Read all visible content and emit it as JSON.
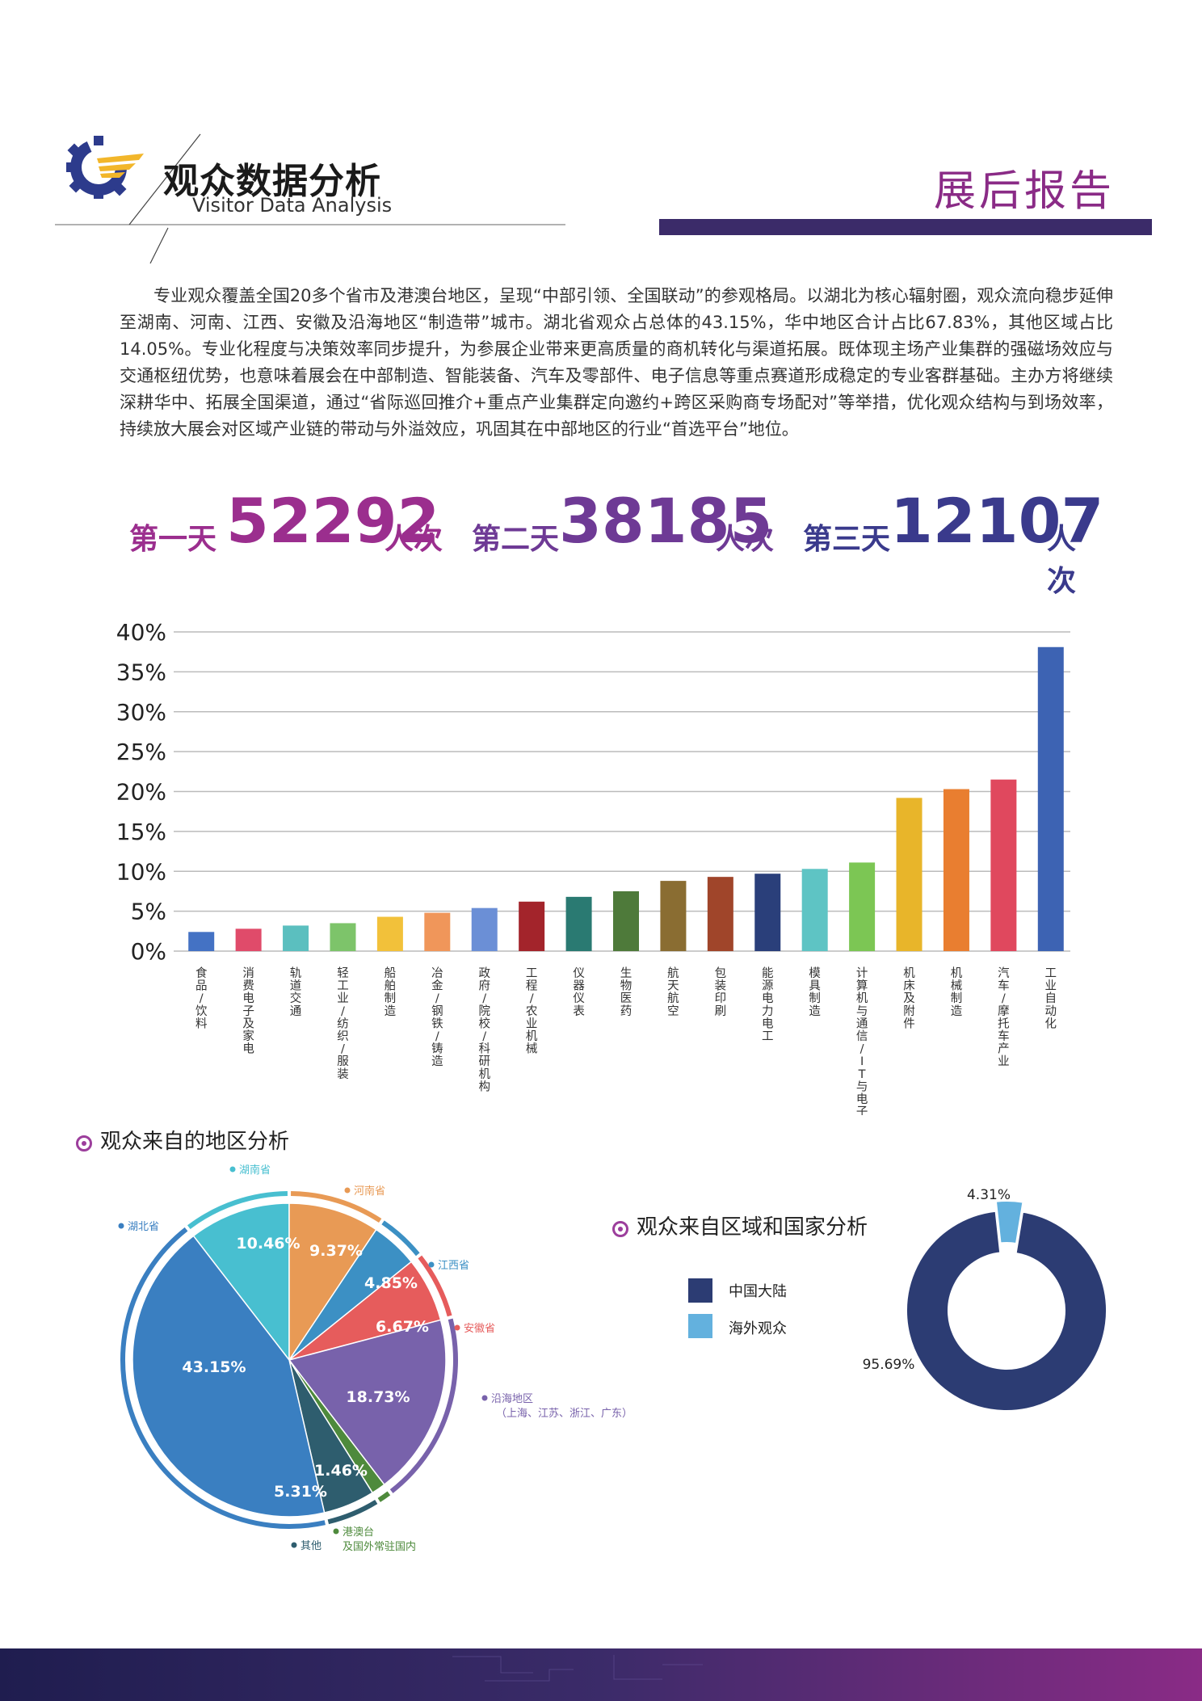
{
  "header": {
    "title_cn": "观众数据分析",
    "title_en": "Visitor Data Analysis",
    "report": "展后报告",
    "accent_purple": "#8a2b86",
    "accent_navy": "#3b2b69"
  },
  "intro": "专业观众覆盖全国20多个省市及港澳台地区，呈现“中部引领、全国联动”的参观格局。以湖北为核心辐射圈，观众流向稳步延伸至湖南、河南、江西、安徽及沿海地区“制造带”城市。湖北省观众占总体的43.15%，华中地区合计占比67.83%，其他区域占比14.05%。专业化程度与决策效率同步提升，为参展企业带来更高质量的商机转化与渠道拓展。既体现主场产业集群的强磁场效应与交通枢纽优势，也意味着展会在中部制造、智能装备、汽车及零部件、电子信息等重点赛道形成稳定的专业客群基础。主办方将继续深耕华中、拓展全国渠道，通过“省际巡回推介+重点产业集群定向邀约+跨区采购商专场配对”等举措，优化观众结构与到场效率，持续放大展会对区域产业链的带动与外溢效应，巩固其在中部地区的行业“首选平台”地位。",
  "days": [
    {
      "label": "第一天",
      "value": "52292",
      "unit": "人次",
      "color": "#9b2e8e"
    },
    {
      "label": "第二天",
      "value": "38185",
      "unit": "人次",
      "color": "#6e3a95"
    },
    {
      "label": "第三天",
      "value": "12107",
      "unit": "人次",
      "color": "#3a3a8c"
    }
  ],
  "sections": {
    "region": "观众来自的地区分析",
    "country": "观众来自区域和国家分析"
  },
  "chart_data": [
    {
      "type": "bar",
      "categories": [
        "食品/饮料",
        "消费电子及家电",
        "轨道交通",
        "轻工业/纺织/服装",
        "船舶制造",
        "冶金/钢铁/铸造",
        "政府/院校/科研机构",
        "工程/农业机械",
        "仪器仪表",
        "生物医药",
        "航天航空",
        "包装印刷",
        "能源电力电工",
        "模具制造",
        "计算机与通信/IT与电子",
        "机床及附件",
        "机械制造",
        "汽车/摩托车产业",
        "工业自动化"
      ],
      "values": [
        2.4,
        2.8,
        3.2,
        3.5,
        4.3,
        4.8,
        5.4,
        6.2,
        6.8,
        7.5,
        8.8,
        9.3,
        9.7,
        10.3,
        11.1,
        19.2,
        20.3,
        21.5,
        38.1
      ],
      "colors": [
        "#4472c4",
        "#e04b6a",
        "#5bbfbf",
        "#7dc46a",
        "#f2c13a",
        "#f0965a",
        "#6b8fd6",
        "#a3242b",
        "#2a7a72",
        "#4e7a3a",
        "#8a6d32",
        "#a0452a",
        "#2a3f7a",
        "#5ec4c4",
        "#7cc654",
        "#e8b52a",
        "#e97e30",
        "#e0485e",
        "#3d63b3"
      ],
      "yticks": [
        "0%",
        "5%",
        "10%",
        "15%",
        "20%",
        "25%",
        "30%",
        "35%",
        "40%"
      ],
      "ylim": [
        0,
        40
      ],
      "grid": true
    },
    {
      "type": "pie",
      "slices": [
        {
          "name": "湖北省",
          "value": 43.15,
          "label": "43.15%",
          "color": "#3a7fc1"
        },
        {
          "name": "湖南省",
          "value": 10.46,
          "label": "10.46%",
          "color": "#48bfd0"
        },
        {
          "name": "河南省",
          "value": 9.37,
          "label": "9.37%",
          "color": "#e89a55"
        },
        {
          "name": "江西省",
          "value": 4.85,
          "label": "4.85%",
          "color": "#3c90c4"
        },
        {
          "name": "安徽省",
          "value": 6.67,
          "label": "6.67%",
          "color": "#e65c5c"
        },
        {
          "name": "沿海地区",
          "sub": "（上海、江苏、浙江、广东）",
          "value": 18.73,
          "label": "18.73%",
          "color": "#7862ab"
        },
        {
          "name": "港澳台",
          "sub": "及国外常驻国内",
          "value": 1.46,
          "label": "1.46%",
          "color": "#4e8a3c"
        },
        {
          "name": "其他",
          "value": 5.31,
          "label": "5.31%",
          "color": "#2e5d6e"
        }
      ]
    },
    {
      "type": "pie",
      "slices": [
        {
          "name": "中国大陆",
          "value": 95.69,
          "label": "95.69%",
          "color": "#2c3c73"
        },
        {
          "name": "海外观众",
          "value": 4.31,
          "label": "4.31%",
          "color": "#63b1de"
        }
      ]
    }
  ]
}
